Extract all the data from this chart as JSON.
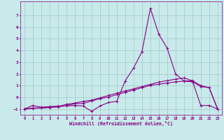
{
  "title": "",
  "xlabel": "Windchill (Refroidissement éolien,°C)",
  "background_color": "#c8eaea",
  "grid_color": "#a0c8c8",
  "line_color": "#880088",
  "xlim": [
    -0.5,
    23.5
  ],
  "ylim": [
    -1.5,
    8.2
  ],
  "yticks": [
    -1,
    0,
    1,
    2,
    3,
    4,
    5,
    6,
    7
  ],
  "xticks": [
    0,
    1,
    2,
    3,
    4,
    5,
    6,
    7,
    8,
    9,
    10,
    11,
    12,
    13,
    14,
    15,
    16,
    17,
    18,
    19,
    20,
    21,
    22,
    23
  ],
  "line1_x": [
    0,
    1,
    2,
    3,
    4,
    5,
    6,
    7,
    8,
    9,
    10,
    11,
    12,
    13,
    14,
    15,
    16,
    17,
    18,
    19,
    20,
    21,
    22,
    23
  ],
  "line1_y": [
    -1.0,
    -0.7,
    -0.85,
    -0.8,
    -0.75,
    -0.75,
    -0.7,
    -0.75,
    -1.2,
    -0.75,
    -0.45,
    -0.35,
    1.4,
    2.5,
    3.9,
    7.6,
    5.4,
    4.2,
    2.0,
    1.4,
    1.4,
    -0.7,
    -0.7,
    -1.0
  ],
  "line2_x": [
    0,
    1,
    2,
    3,
    4,
    5,
    6,
    7,
    8,
    9,
    10,
    11,
    12,
    13,
    14,
    15,
    16,
    17,
    18,
    19,
    20,
    21,
    22,
    23
  ],
  "line2_y": [
    -1.0,
    -0.92,
    -0.9,
    -0.85,
    -0.8,
    -0.6,
    -0.5,
    -0.35,
    -0.25,
    -0.05,
    0.15,
    0.35,
    0.55,
    0.72,
    0.92,
    1.1,
    1.3,
    1.42,
    1.55,
    1.65,
    1.42,
    1.0,
    0.82,
    -1.0
  ],
  "line3_x": [
    0,
    1,
    2,
    3,
    4,
    5,
    6,
    7,
    8,
    9,
    10,
    11,
    12,
    13,
    14,
    15,
    16,
    17,
    18,
    19,
    20,
    21,
    22,
    23
  ],
  "line3_y": [
    -1.0,
    -0.95,
    -0.92,
    -0.88,
    -0.82,
    -0.72,
    -0.55,
    -0.52,
    -0.32,
    -0.12,
    0.02,
    0.22,
    0.42,
    0.62,
    0.82,
    1.02,
    1.12,
    1.22,
    1.32,
    1.38,
    1.32,
    0.92,
    0.82,
    -1.0
  ]
}
